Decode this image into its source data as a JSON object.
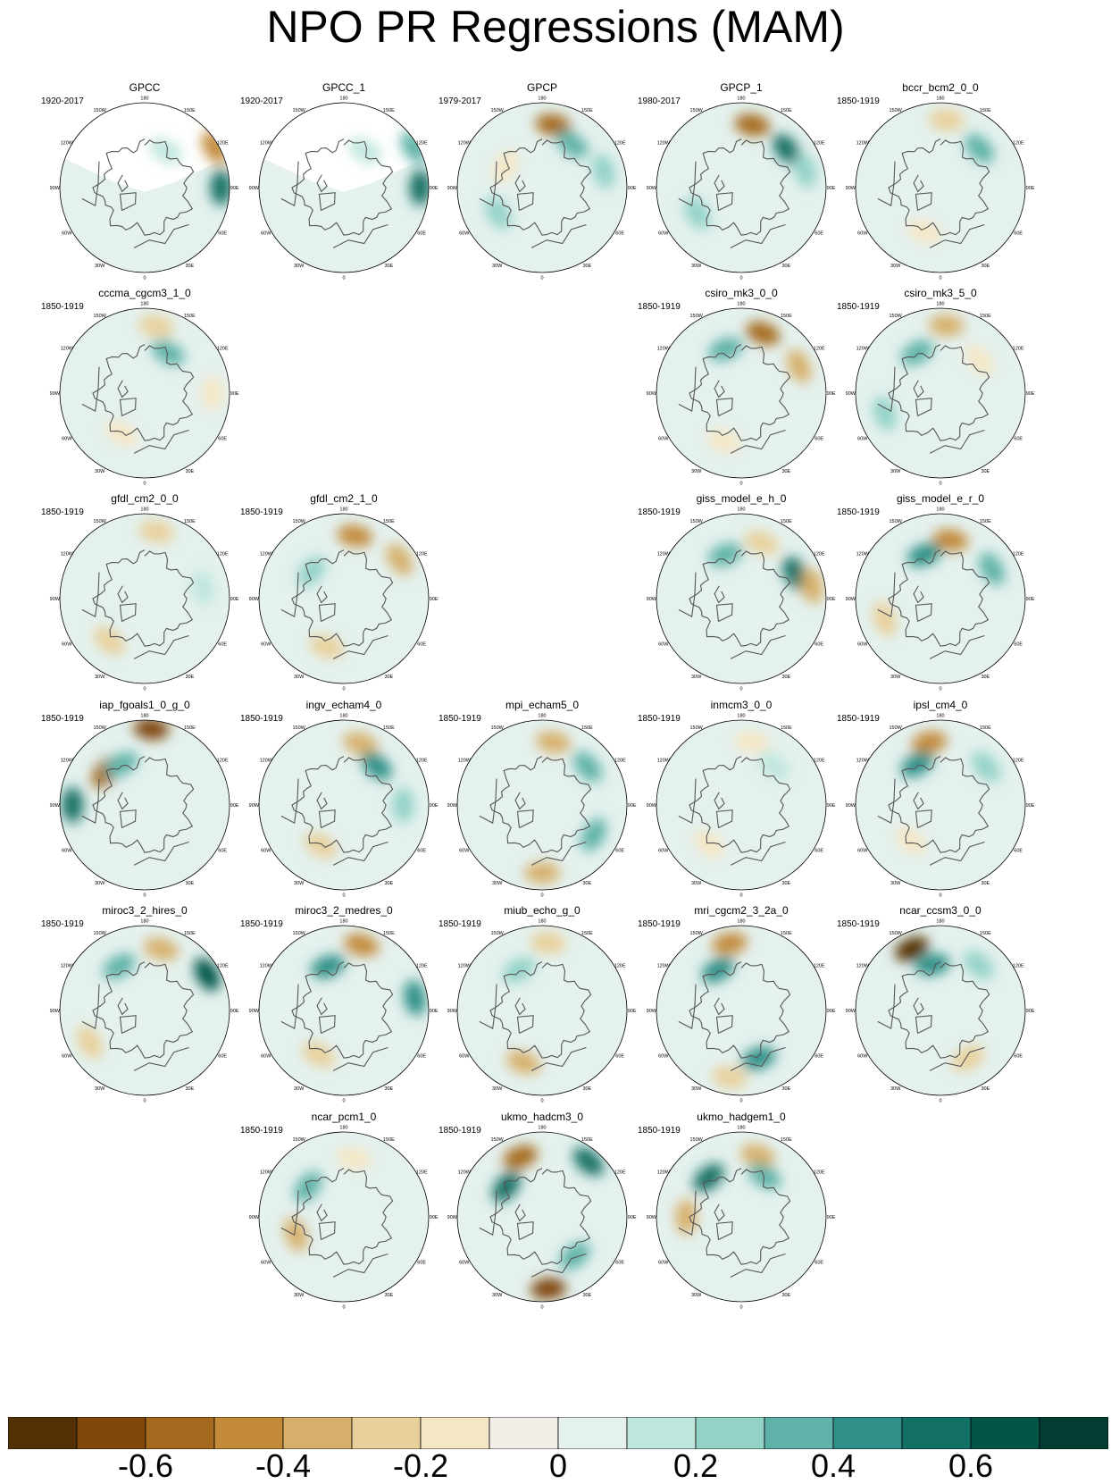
{
  "title": "NPO PR Regressions (MAM)",
  "longitude_labels": [
    "180",
    "150E",
    "120E",
    "90E",
    "60E",
    "30E",
    "0",
    "30W",
    "60W",
    "90W",
    "120W",
    "150W"
  ],
  "panels": [
    {
      "name": "GPCC",
      "years": "1920-2017",
      "features": [
        {
          "lon": 120,
          "r": 0.95,
          "v": -0.45
        },
        {
          "lon": 90,
          "r": 0.9,
          "v": 0.5
        },
        {
          "lon": 150,
          "r": 0.5,
          "v": 0.1
        }
      ],
      "mask": "missing-ocean"
    },
    {
      "name": "GPCC_1",
      "years": "1920-2017",
      "features": [
        {
          "lon": 120,
          "r": 0.95,
          "v": 0.3
        },
        {
          "lon": 90,
          "r": 0.9,
          "v": 0.5
        },
        {
          "lon": 150,
          "r": 0.5,
          "v": 0.1
        }
      ],
      "mask": "missing-ocean"
    },
    {
      "name": "GPCP",
      "years": "1979-2017",
      "features": [
        {
          "lon": 170,
          "r": 0.75,
          "v": -0.55
        },
        {
          "lon": 145,
          "r": 0.62,
          "v": 0.35
        },
        {
          "lon": 105,
          "r": 0.75,
          "v": 0.2
        },
        {
          "lon": -60,
          "r": 0.6,
          "v": 0.25
        },
        {
          "lon": -120,
          "r": 0.5,
          "v": -0.15
        }
      ]
    },
    {
      "name": "GPCP_1",
      "years": "1980-2017",
      "features": [
        {
          "lon": 170,
          "r": 0.75,
          "v": -0.55
        },
        {
          "lon": 130,
          "r": 0.7,
          "v": 0.5
        },
        {
          "lon": 105,
          "r": 0.78,
          "v": 0.2
        },
        {
          "lon": -60,
          "r": 0.6,
          "v": 0.25
        }
      ]
    },
    {
      "name": "bccr_bcm2_0_0",
      "years": "1850-1919",
      "features": [
        {
          "lon": 175,
          "r": 0.8,
          "v": -0.25
        },
        {
          "lon": 135,
          "r": 0.65,
          "v": 0.3
        },
        {
          "lon": -20,
          "r": 0.55,
          "v": -0.15
        }
      ]
    },
    {
      "name": "cccma_cgcm3_1_0",
      "years": "1850-1919",
      "features": [
        {
          "lon": 170,
          "r": 0.8,
          "v": -0.3
        },
        {
          "lon": 150,
          "r": 0.55,
          "v": 0.35
        },
        {
          "lon": 90,
          "r": 0.8,
          "v": -0.2
        },
        {
          "lon": -30,
          "r": 0.55,
          "v": -0.2
        }
      ]
    },
    null,
    null,
    {
      "name": "csiro_mk3_0_0",
      "years": "1850-1919",
      "features": [
        {
          "lon": 160,
          "r": 0.75,
          "v": -0.55
        },
        {
          "lon": -160,
          "r": 0.55,
          "v": 0.3
        },
        {
          "lon": 115,
          "r": 0.75,
          "v": -0.35
        },
        {
          "lon": -20,
          "r": 0.6,
          "v": -0.2
        }
      ]
    },
    {
      "name": "csiro_mk3_5_0",
      "years": "1850-1919",
      "features": [
        {
          "lon": 175,
          "r": 0.8,
          "v": -0.4
        },
        {
          "lon": -150,
          "r": 0.55,
          "v": 0.35
        },
        {
          "lon": -70,
          "r": 0.7,
          "v": 0.25
        },
        {
          "lon": 130,
          "r": 0.6,
          "v": -0.2
        }
      ]
    },
    {
      "name": "gfdl_cm2_0_0",
      "years": "1850-1919",
      "features": [
        {
          "lon": 170,
          "r": 0.8,
          "v": -0.3
        },
        {
          "lon": -40,
          "r": 0.65,
          "v": -0.25
        },
        {
          "lon": 100,
          "r": 0.7,
          "v": 0.15
        }
      ]
    },
    {
      "name": "gfdl_cm2_1_0",
      "years": "1850-1919",
      "features": [
        {
          "lon": 170,
          "r": 0.75,
          "v": -0.45
        },
        {
          "lon": 125,
          "r": 0.8,
          "v": -0.4
        },
        {
          "lon": -20,
          "r": 0.6,
          "v": -0.25
        },
        {
          "lon": -130,
          "r": 0.5,
          "v": 0.2
        }
      ]
    },
    null,
    {
      "name": "giss_model_e_h_0",
      "years": "1850-1919",
      "features": [
        {
          "lon": 160,
          "r": 0.7,
          "v": -0.3
        },
        {
          "lon": 115,
          "r": 0.7,
          "v": 0.5
        },
        {
          "lon": -160,
          "r": 0.55,
          "v": 0.3
        },
        {
          "lon": 100,
          "r": 0.85,
          "v": -0.35
        }
      ]
    },
    {
      "name": "giss_model_e_r_0",
      "years": "1850-1919",
      "features": [
        {
          "lon": 170,
          "r": 0.7,
          "v": -0.45
        },
        {
          "lon": -160,
          "r": 0.55,
          "v": 0.4
        },
        {
          "lon": 120,
          "r": 0.7,
          "v": 0.3
        },
        {
          "lon": -70,
          "r": 0.7,
          "v": -0.25
        }
      ]
    },
    {
      "name": "iap_fgoals1_0_g_0",
      "years": "1850-1919",
      "features": [
        {
          "lon": 175,
          "r": 0.9,
          "v": -0.7
        },
        {
          "lon": -130,
          "r": 0.6,
          "v": -0.6
        },
        {
          "lon": -90,
          "r": 0.85,
          "v": 0.55
        },
        {
          "lon": -150,
          "r": 0.55,
          "v": 0.3
        }
      ]
    },
    {
      "name": "ingv_echam4_0",
      "years": "1850-1919",
      "features": [
        {
          "lon": 165,
          "r": 0.75,
          "v": -0.35
        },
        {
          "lon": 140,
          "r": 0.6,
          "v": 0.45
        },
        {
          "lon": -30,
          "r": 0.55,
          "v": -0.25
        },
        {
          "lon": 90,
          "r": 0.7,
          "v": 0.2
        }
      ]
    },
    {
      "name": "mpi_echam5_0",
      "years": "1850-1919",
      "features": [
        {
          "lon": 170,
          "r": 0.75,
          "v": -0.4
        },
        {
          "lon": 130,
          "r": 0.7,
          "v": 0.35
        },
        {
          "lon": 0,
          "r": 0.8,
          "v": -0.4
        },
        {
          "lon": 60,
          "r": 0.7,
          "v": 0.35
        }
      ]
    },
    {
      "name": "inmcm3_0_0",
      "years": "1850-1919",
      "features": [
        {
          "lon": 170,
          "r": 0.75,
          "v": -0.2
        },
        {
          "lon": 140,
          "r": 0.6,
          "v": 0.15
        },
        {
          "lon": -40,
          "r": 0.6,
          "v": -0.15
        }
      ]
    },
    {
      "name": "ipsl_cm4_0",
      "years": "1850-1919",
      "features": [
        {
          "lon": -170,
          "r": 0.75,
          "v": -0.5
        },
        {
          "lon": -150,
          "r": 0.55,
          "v": 0.45
        },
        {
          "lon": 130,
          "r": 0.7,
          "v": 0.25
        },
        {
          "lon": -40,
          "r": 0.55,
          "v": -0.2
        }
      ]
    },
    {
      "name": "miroc3_2_hires_0",
      "years": "1850-1919",
      "features": [
        {
          "lon": 165,
          "r": 0.75,
          "v": -0.4
        },
        {
          "lon": 120,
          "r": 0.85,
          "v": 0.6
        },
        {
          "lon": -60,
          "r": 0.75,
          "v": -0.3
        },
        {
          "lon": -150,
          "r": 0.6,
          "v": 0.3
        }
      ]
    },
    {
      "name": "miroc3_2_medres_0",
      "years": "1850-1919",
      "features": [
        {
          "lon": 165,
          "r": 0.8,
          "v": -0.45
        },
        {
          "lon": 100,
          "r": 0.85,
          "v": 0.45
        },
        {
          "lon": -160,
          "r": 0.55,
          "v": 0.4
        },
        {
          "lon": -30,
          "r": 0.6,
          "v": -0.3
        }
      ]
    },
    {
      "name": "miub_echo_g_0",
      "years": "1850-1919",
      "features": [
        {
          "lon": 175,
          "r": 0.8,
          "v": -0.3
        },
        {
          "lon": -20,
          "r": 0.65,
          "v": -0.35
        },
        {
          "lon": -150,
          "r": 0.55,
          "v": 0.25
        }
      ]
    },
    {
      "name": "mri_cgcm2_3_2a_0",
      "years": "1850-1919",
      "features": [
        {
          "lon": -170,
          "r": 0.8,
          "v": -0.45
        },
        {
          "lon": -150,
          "r": 0.55,
          "v": 0.45
        },
        {
          "lon": 20,
          "r": 0.6,
          "v": 0.4
        },
        {
          "lon": -10,
          "r": 0.8,
          "v": -0.3
        }
      ]
    },
    {
      "name": "ncar_ccsm3_0_0",
      "years": "1850-1919",
      "features": [
        {
          "lon": -155,
          "r": 0.8,
          "v": -0.75
        },
        {
          "lon": -170,
          "r": 0.55,
          "v": 0.4
        },
        {
          "lon": 30,
          "r": 0.65,
          "v": -0.25
        },
        {
          "lon": 140,
          "r": 0.7,
          "v": 0.25
        }
      ]
    },
    null,
    {
      "name": "ncar_pcm1_0",
      "years": "1850-1919",
      "features": [
        {
          "lon": 170,
          "r": 0.7,
          "v": -0.2
        },
        {
          "lon": -130,
          "r": 0.55,
          "v": 0.35
        },
        {
          "lon": -70,
          "r": 0.6,
          "v": -0.35
        }
      ]
    },
    {
      "name": "ukmo_hadcm3_0",
      "years": "1850-1919",
      "features": [
        {
          "lon": -160,
          "r": 0.75,
          "v": -0.55
        },
        {
          "lon": 140,
          "r": 0.85,
          "v": 0.55
        },
        {
          "lon": -130,
          "r": 0.55,
          "v": 0.55
        },
        {
          "lon": 5,
          "r": 0.85,
          "v": -0.7
        },
        {
          "lon": 40,
          "r": 0.6,
          "v": 0.3
        }
      ]
    },
    {
      "name": "ukmo_hadgem1_0",
      "years": "1850-1919",
      "features": [
        {
          "lon": 165,
          "r": 0.75,
          "v": -0.4
        },
        {
          "lon": -140,
          "r": 0.6,
          "v": 0.55
        },
        {
          "lon": -90,
          "r": 0.65,
          "v": -0.4
        },
        {
          "lon": 150,
          "r": 0.55,
          "v": 0.3
        }
      ]
    },
    null
  ],
  "colorbar": {
    "levels": [
      -0.7,
      -0.6,
      -0.5,
      -0.4,
      -0.3,
      -0.2,
      -0.1,
      0,
      0.1,
      0.2,
      0.3,
      0.4,
      0.5,
      0.6,
      0.7
    ],
    "colors": [
      "#543005",
      "#7f4709",
      "#a56a1f",
      "#c38a3a",
      "#d7b06c",
      "#e8d09a",
      "#f5e6c5",
      "#f2efe6",
      "#e4f1ee",
      "#bfe6dd",
      "#93d2c7",
      "#5fb2a8",
      "#2f9087",
      "#137065",
      "#035548",
      "#023d33"
    ],
    "tick_labels": [
      "-0.6",
      "-0.4",
      "-0.2",
      "0",
      "0.2",
      "0.4",
      "0.6"
    ],
    "tick_values": [
      -0.6,
      -0.4,
      -0.2,
      0,
      0.2,
      0.4,
      0.6
    ]
  }
}
